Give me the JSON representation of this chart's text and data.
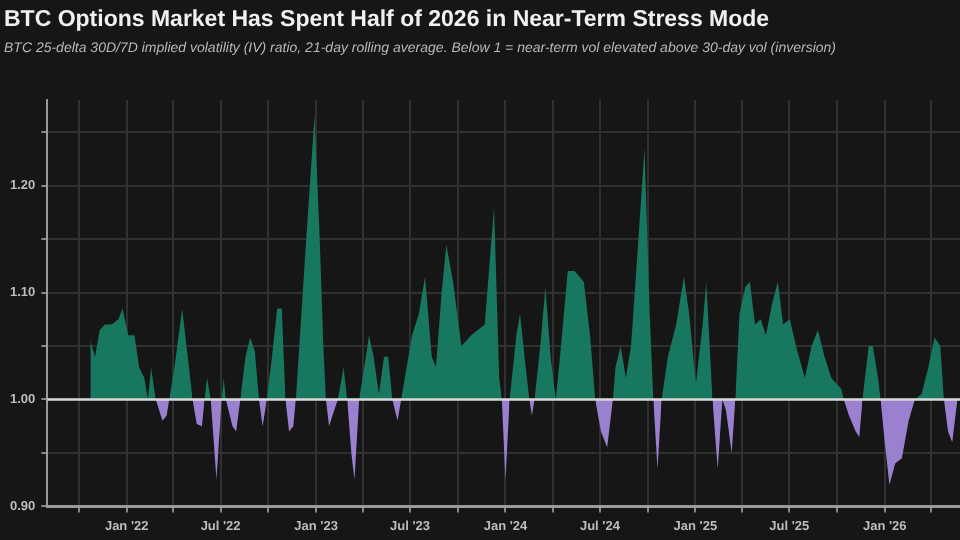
{
  "chart_data": {
    "type": "area",
    "title": "BTC Options Market Has Spent Half of 2026 in Near-Term Stress Mode",
    "subtitle": "BTC 25-delta 30D/7D implied volatility (IV) ratio, 21-day rolling average. Below 1 = near-term vol elevated above 30-day vol (inversion)",
    "x": [
      "2021-10-23",
      "2021-11-01",
      "2021-11-10",
      "2021-11-20",
      "2021-12-03",
      "2021-12-16",
      "2021-12-24",
      "2022-01-04",
      "2022-01-16",
      "2022-01-25",
      "2022-02-04",
      "2022-02-11",
      "2022-02-17",
      "2022-02-26",
      "2022-03-11",
      "2022-03-19",
      "2022-03-24",
      "2022-04-03",
      "2022-04-18",
      "2022-05-01",
      "2022-05-08",
      "2022-05-16",
      "2022-05-26",
      "2022-05-31",
      "2022-06-05",
      "2022-06-12",
      "2022-06-23",
      "2022-07-03",
      "2022-07-07",
      "2022-07-11",
      "2022-07-24",
      "2022-07-31",
      "2022-08-08",
      "2022-08-18",
      "2022-08-27",
      "2022-09-05",
      "2022-09-13",
      "2022-09-20",
      "2022-09-28",
      "2022-10-08",
      "2022-10-18",
      "2022-10-27",
      "2022-11-03",
      "2022-11-10",
      "2022-11-18",
      "2022-11-23",
      "2022-12-01",
      "2022-12-13",
      "2022-12-29",
      "2023-01-08",
      "2023-01-15",
      "2023-01-20",
      "2023-01-26",
      "2023-02-05",
      "2023-02-12",
      "2023-02-23",
      "2023-03-02",
      "2023-03-10",
      "2023-03-16",
      "2023-03-25",
      "2023-04-07",
      "2023-04-13",
      "2023-04-22",
      "2023-05-02",
      "2023-05-12",
      "2023-05-20",
      "2023-05-28",
      "2023-06-07",
      "2023-06-14",
      "2023-07-05",
      "2023-07-18",
      "2023-07-30",
      "2023-08-12",
      "2023-08-20",
      "2023-08-31",
      "2023-09-09",
      "2023-09-22",
      "2023-10-08",
      "2023-10-27",
      "2023-11-22",
      "2023-12-10",
      "2023-12-20",
      "2023-12-25",
      "2024-01-01",
      "2024-01-09",
      "2024-01-22",
      "2024-01-29",
      "2024-02-09",
      "2024-02-16",
      "2024-02-21",
      "2024-02-26",
      "2024-03-08",
      "2024-03-18",
      "2024-03-28",
      "2024-04-07",
      "2024-04-17",
      "2024-04-30",
      "2024-05-13",
      "2024-05-31",
      "2024-06-12",
      "2024-06-22",
      "2024-07-03",
      "2024-07-15",
      "2024-07-26",
      "2024-07-31",
      "2024-08-10",
      "2024-08-20",
      "2024-08-30",
      "2024-09-09",
      "2024-09-25",
      "2024-10-05",
      "2024-10-12",
      "2024-10-20",
      "2024-10-28",
      "2024-11-09",
      "2024-11-25",
      "2024-12-10",
      "2024-12-20",
      "2025-01-02",
      "2025-01-15",
      "2025-01-22",
      "2025-02-03",
      "2025-02-13",
      "2025-02-22",
      "2025-03-01",
      "2025-03-12",
      "2025-03-19",
      "2025-03-27",
      "2025-04-07",
      "2025-04-16",
      "2025-04-26",
      "2025-05-07",
      "2025-05-17",
      "2025-05-29",
      "2025-06-09",
      "2025-06-19",
      "2025-07-02",
      "2025-07-14",
      "2025-07-31",
      "2025-08-13",
      "2025-08-25",
      "2025-09-07",
      "2025-09-20",
      "2025-10-09",
      "2025-10-14",
      "2025-10-24",
      "2025-11-06",
      "2025-11-13",
      "2025-11-19",
      "2025-12-01",
      "2025-12-09",
      "2025-12-19",
      "2025-12-24",
      "2026-01-01",
      "2026-01-10",
      "2026-01-21",
      "2026-02-03",
      "2026-02-16",
      "2026-02-28",
      "2026-03-13",
      "2026-03-26",
      "2026-04-07",
      "2026-04-18",
      "2026-04-25",
      "2026-05-03",
      "2026-05-11",
      "2026-05-21"
    ],
    "series": [
      {
        "color": "#17775f",
        "values": [
          1.055,
          1.04,
          1.065,
          1.07,
          1.07,
          1.075,
          1.085,
          1.06,
          1.06,
          1.03,
          1.02,
          1.0,
          1.03,
          1.0,
          null,
          null,
          1.0,
          1.03,
          1.085,
          1.03,
          1.0,
          null,
          null,
          1.0,
          1.02,
          1.0,
          null,
          1.0,
          1.02,
          1.0,
          null,
          null,
          1.0,
          1.04,
          1.058,
          1.045,
          1.0,
          null,
          1.0,
          1.04,
          1.085,
          1.085,
          1.0,
          null,
          null,
          1.0,
          1.06,
          1.15,
          1.265,
          1.15,
          1.05,
          1.0,
          null,
          null,
          1.0,
          1.03,
          1.0,
          null,
          null,
          1.0,
          1.04,
          1.06,
          1.04,
          1.005,
          1.04,
          1.04,
          1.0,
          null,
          1.0,
          1.06,
          1.08,
          1.115,
          1.04,
          1.03,
          1.1,
          1.145,
          1.11,
          1.05,
          1.06,
          1.07,
          1.18,
          1.02,
          1.0,
          null,
          1.0,
          1.06,
          1.08,
          1.03,
          1.0,
          null,
          1.0,
          1.05,
          1.105,
          1.04,
          1.0,
          1.05,
          1.12,
          1.12,
          1.11,
          1.06,
          1.0,
          null,
          null,
          1.0,
          1.03,
          1.05,
          1.02,
          1.05,
          1.12,
          1.235,
          1.08,
          1.0,
          null,
          1.0,
          1.04,
          1.07,
          1.115,
          1.08,
          1.015,
          1.07,
          1.11,
          1.0,
          null,
          null,
          null,
          null,
          1.0,
          1.08,
          1.105,
          1.11,
          1.07,
          1.075,
          1.06,
          1.09,
          1.11,
          1.07,
          1.075,
          1.05,
          1.02,
          1.05,
          1.065,
          1.04,
          1.02,
          1.01,
          1.0,
          null,
          null,
          null,
          1.0,
          1.05,
          1.05,
          1.02,
          1.0,
          null,
          null,
          null,
          null,
          null,
          1.0,
          1.005,
          1.03,
          1.058,
          1.05,
          1.0,
          null,
          null,
          null
        ]
      },
      {
        "color": "#9a80cf",
        "values": [
          null,
          null,
          null,
          null,
          null,
          null,
          null,
          null,
          null,
          null,
          null,
          null,
          null,
          1.0,
          0.98,
          0.985,
          1.0,
          null,
          null,
          null,
          1.0,
          0.977,
          0.975,
          1.0,
          null,
          1.0,
          0.925,
          1.0,
          null,
          1.0,
          0.975,
          0.97,
          1.0,
          null,
          null,
          null,
          1.0,
          0.975,
          1.0,
          null,
          null,
          null,
          1.0,
          0.97,
          0.975,
          1.0,
          null,
          null,
          null,
          null,
          null,
          1.0,
          0.975,
          0.99,
          1.0,
          null,
          1.0,
          0.95,
          0.925,
          1.0,
          null,
          null,
          null,
          null,
          null,
          null,
          1.0,
          0.98,
          1.0,
          null,
          null,
          null,
          null,
          null,
          null,
          null,
          null,
          null,
          null,
          null,
          null,
          null,
          1.0,
          0.925,
          1.0,
          null,
          null,
          null,
          1.0,
          0.985,
          1.0,
          null,
          null,
          null,
          null,
          null,
          null,
          null,
          null,
          null,
          1.0,
          0.97,
          0.955,
          1.0,
          null,
          null,
          null,
          null,
          null,
          null,
          null,
          1.0,
          0.935,
          1.0,
          null,
          null,
          null,
          null,
          null,
          null,
          null,
          1.0,
          0.935,
          1.0,
          0.99,
          0.95,
          1.0,
          null,
          null,
          null,
          null,
          null,
          null,
          null,
          null,
          null,
          null,
          null,
          null,
          null,
          null,
          null,
          null,
          null,
          1.0,
          0.985,
          0.97,
          0.965,
          1.0,
          null,
          null,
          null,
          1.0,
          0.96,
          0.92,
          0.94,
          0.945,
          0.98,
          1.0,
          null,
          null,
          null,
          null,
          1.0,
          0.97,
          0.96,
          1.0
        ]
      }
    ],
    "xlim": [
      "2021-08-01",
      "2026-05-26"
    ],
    "xticks": [
      {
        "value": "2021-10-01",
        "label": null
      },
      {
        "value": "2022-01-01",
        "label": "Jan '22"
      },
      {
        "value": "2022-04-01",
        "label": null
      },
      {
        "value": "2022-07-01",
        "label": "Jul '22"
      },
      {
        "value": "2022-10-01",
        "label": null
      },
      {
        "value": "2023-01-01",
        "label": "Jan '23"
      },
      {
        "value": "2023-04-01",
        "label": null
      },
      {
        "value": "2023-07-01",
        "label": "Jul '23"
      },
      {
        "value": "2023-10-01",
        "label": null
      },
      {
        "value": "2024-01-01",
        "label": "Jan '24"
      },
      {
        "value": "2024-04-01",
        "label": null
      },
      {
        "value": "2024-07-01",
        "label": "Jul '24"
      },
      {
        "value": "2024-10-01",
        "label": null
      },
      {
        "value": "2025-01-01",
        "label": "Jan '25"
      },
      {
        "value": "2025-04-01",
        "label": null
      },
      {
        "value": "2025-07-01",
        "label": "Jul '25"
      },
      {
        "value": "2025-10-01",
        "label": null
      },
      {
        "value": "2026-01-01",
        "label": "Jan '26"
      },
      {
        "value": "2026-04-01",
        "label": null
      }
    ],
    "ylim": [
      0.9,
      1.28
    ],
    "yticks": [
      {
        "value": 0.9,
        "label": "0.90"
      },
      {
        "value": 0.95,
        "label": null
      },
      {
        "value": 1.0,
        "label": "1.00"
      },
      {
        "value": 1.05,
        "label": null
      },
      {
        "value": 1.1,
        "label": "1.10"
      },
      {
        "value": 1.15,
        "label": null
      },
      {
        "value": 1.2,
        "label": "1.20"
      },
      {
        "value": 1.25,
        "label": null
      }
    ],
    "ref_lines": [
      {
        "axis": "y",
        "value": 1.0,
        "color": "#d8d8d8"
      }
    ],
    "grid": true
  }
}
